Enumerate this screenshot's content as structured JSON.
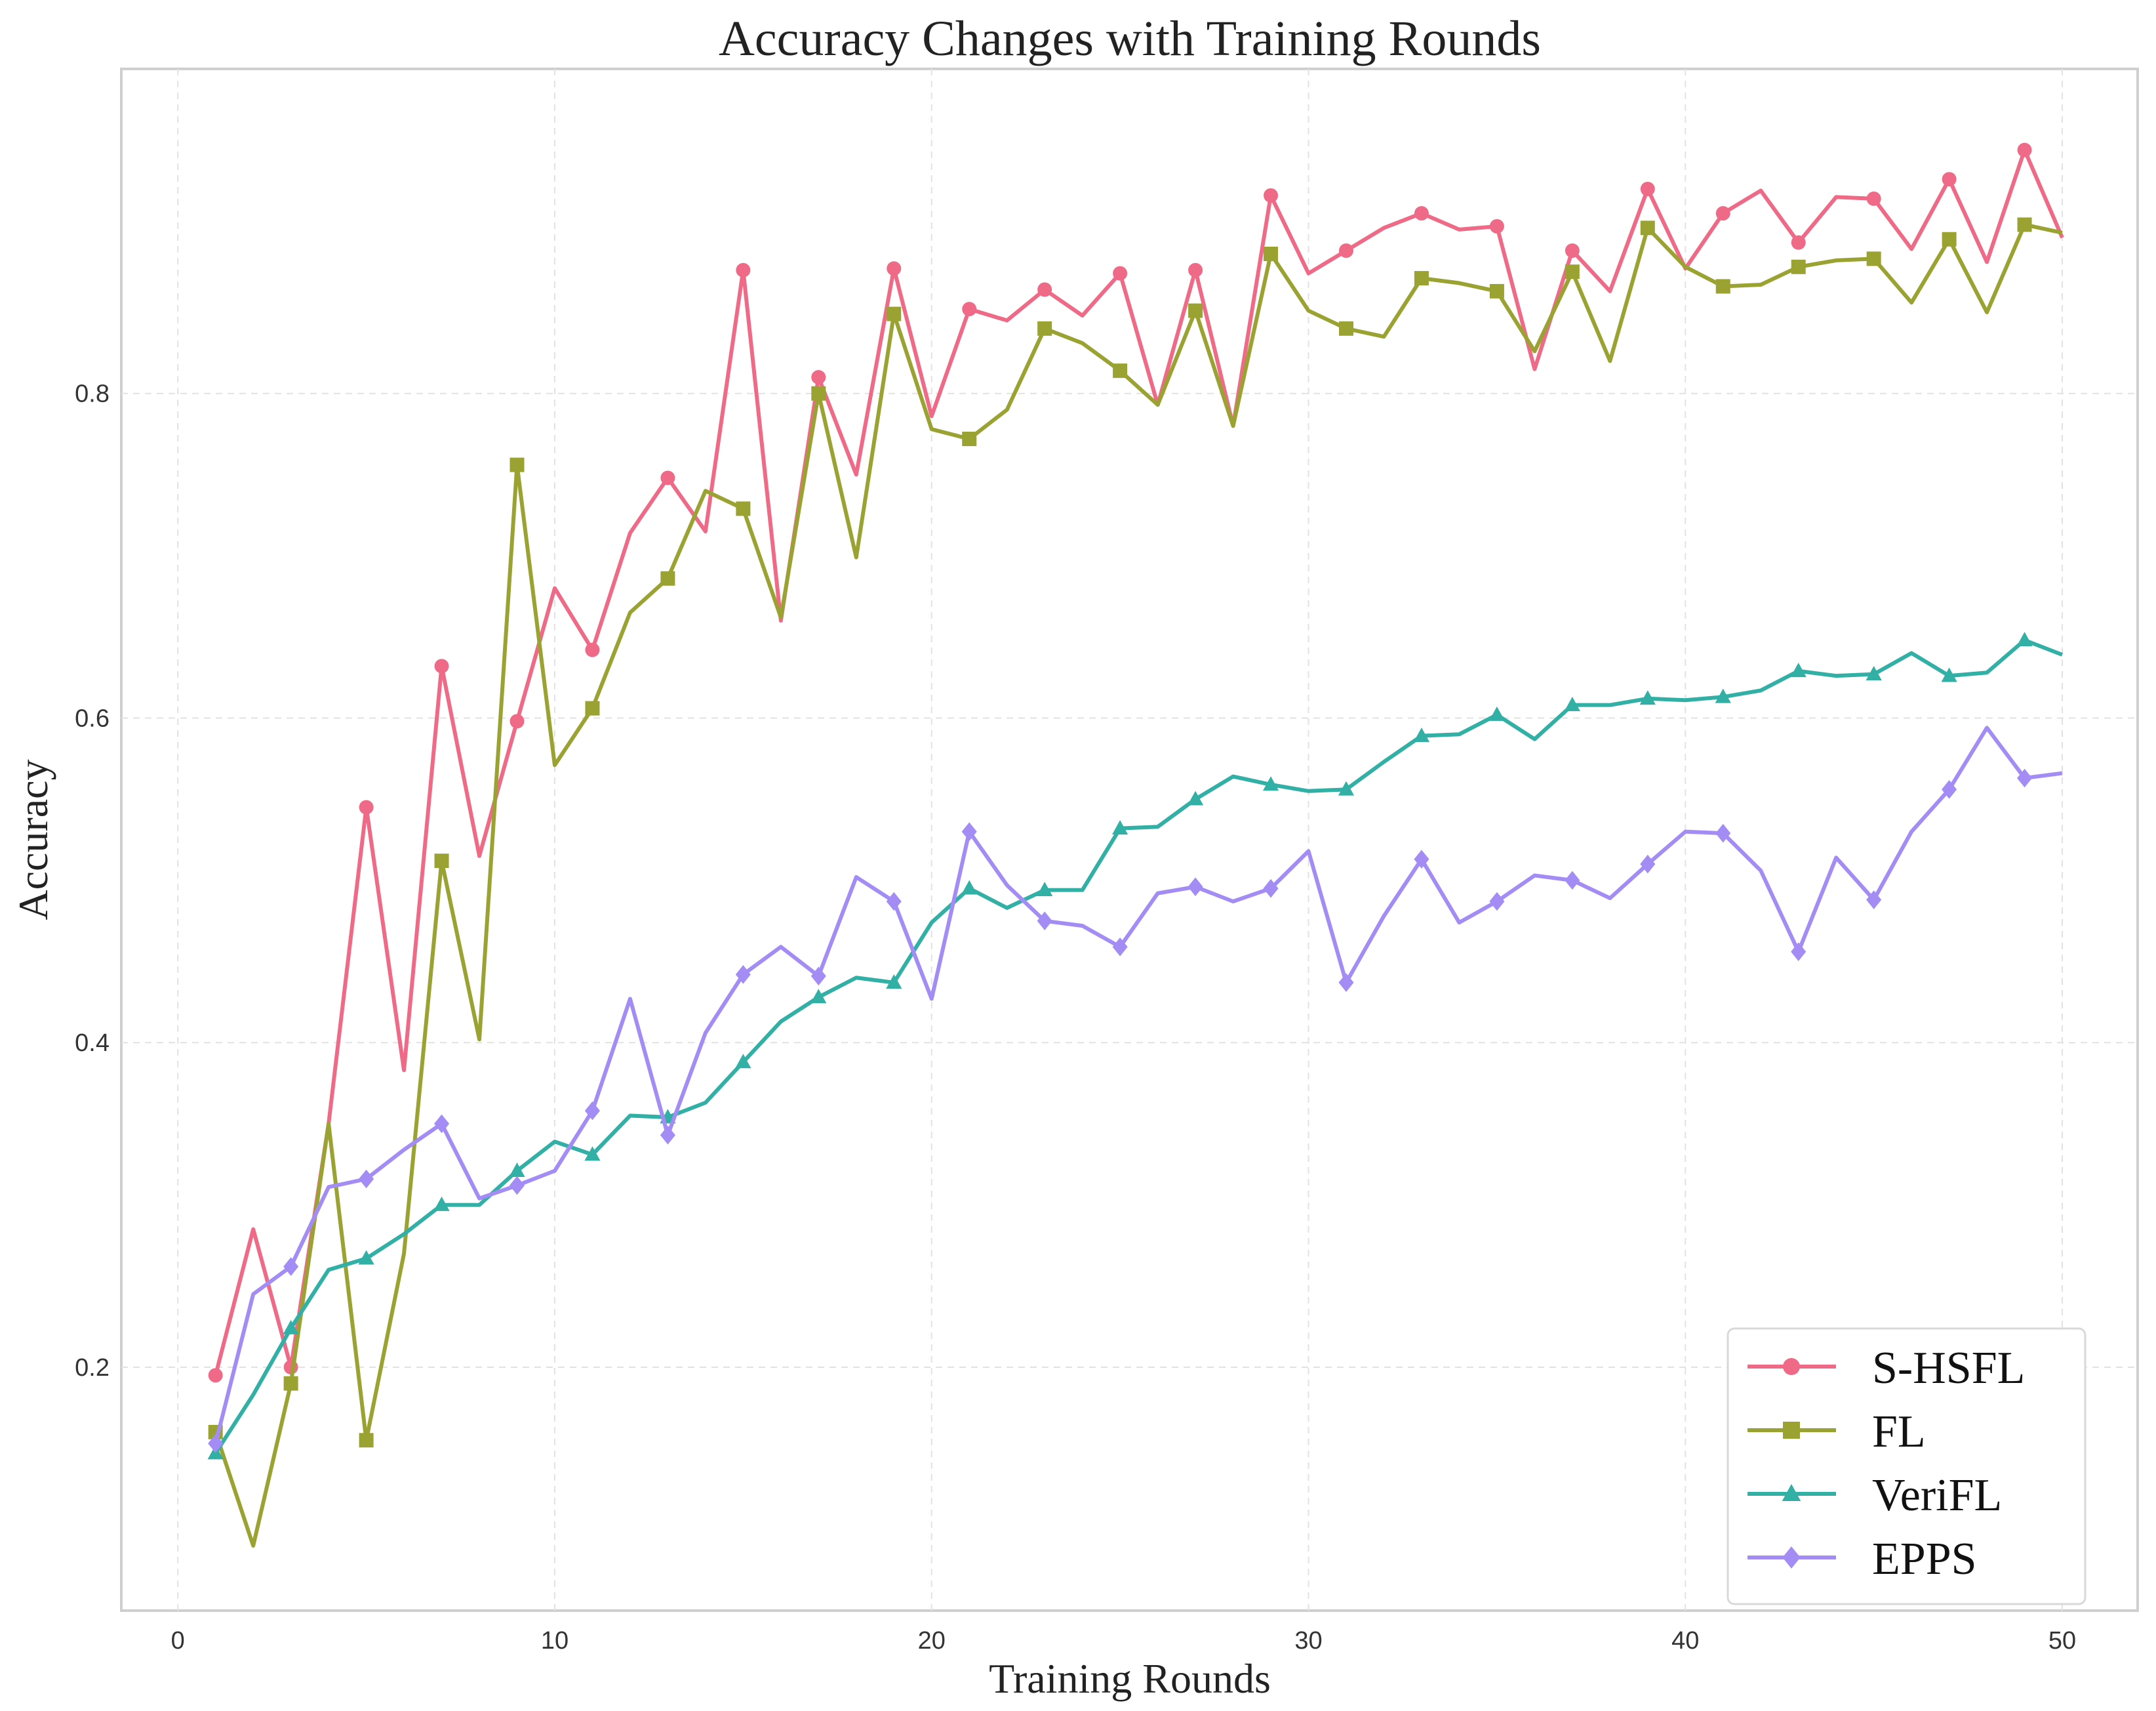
{
  "chart_data": {
    "type": "line",
    "title": "Accuracy Changes with Training Rounds",
    "xlabel": "Training Rounds",
    "ylabel": "Accuracy",
    "xlim": [
      -1.5,
      52
    ],
    "ylim": [
      0.05,
      1.0
    ],
    "xticks": [
      0,
      10,
      20,
      30,
      40,
      50
    ],
    "yticks": [
      0.2,
      0.4,
      0.6,
      0.8
    ],
    "xtick_labels": [
      "0",
      "10",
      "20",
      "30",
      "40",
      "50"
    ],
    "ytick_labels": [
      "0.2",
      "0.4",
      "0.6",
      "0.8"
    ],
    "grid": true,
    "legend_position": "bottom-right",
    "x": [
      1,
      2,
      3,
      4,
      5,
      6,
      7,
      8,
      9,
      10,
      11,
      12,
      13,
      14,
      15,
      16,
      17,
      18,
      19,
      20,
      21,
      22,
      23,
      24,
      25,
      26,
      27,
      28,
      29,
      30,
      31,
      32,
      33,
      34,
      35,
      36,
      37,
      38,
      39,
      40,
      41,
      42,
      43,
      44,
      45,
      46,
      47,
      48,
      49,
      50
    ],
    "series": [
      {
        "name": "S-HSFL",
        "color": "#ee6a87",
        "marker": "circle",
        "values": [
          0.195,
          0.285,
          0.2,
          0.35,
          0.545,
          0.383,
          0.632,
          0.515,
          0.598,
          0.68,
          0.642,
          0.714,
          0.748,
          0.715,
          0.876,
          0.66,
          0.81,
          0.75,
          0.877,
          0.786,
          0.852,
          0.845,
          0.864,
          0.848,
          0.874,
          0.793,
          0.876,
          0.78,
          0.922,
          0.874,
          0.888,
          0.902,
          0.911,
          0.901,
          0.903,
          0.815,
          0.888,
          0.863,
          0.926,
          0.877,
          0.911,
          0.925,
          0.893,
          0.921,
          0.92,
          0.889,
          0.932,
          0.881,
          0.95,
          0.896
        ]
      },
      {
        "name": "FL",
        "color": "#9aa332",
        "marker": "square",
        "values": [
          0.16,
          0.09,
          0.19,
          0.35,
          0.155,
          0.27,
          0.512,
          0.402,
          0.756,
          0.571,
          0.606,
          0.665,
          0.686,
          0.74,
          0.729,
          0.662,
          0.8,
          0.699,
          0.849,
          0.778,
          0.772,
          0.79,
          0.84,
          0.831,
          0.814,
          0.793,
          0.851,
          0.78,
          0.886,
          0.851,
          0.84,
          0.835,
          0.871,
          0.868,
          0.863,
          0.826,
          0.875,
          0.82,
          0.902,
          0.878,
          0.866,
          0.867,
          0.878,
          0.882,
          0.883,
          0.856,
          0.895,
          0.85,
          0.904,
          0.899
        ]
      },
      {
        "name": "VeriFL",
        "color": "#33b0a6",
        "marker": "triangle",
        "values": [
          0.147,
          0.183,
          0.224,
          0.26,
          0.267,
          0.282,
          0.3,
          0.3,
          0.321,
          0.339,
          0.331,
          0.355,
          0.354,
          0.363,
          0.388,
          0.413,
          0.428,
          0.44,
          0.437,
          0.474,
          0.495,
          0.483,
          0.494,
          0.494,
          0.532,
          0.533,
          0.55,
          0.564,
          0.559,
          0.555,
          0.556,
          0.573,
          0.589,
          0.59,
          0.602,
          0.587,
          0.608,
          0.608,
          0.612,
          0.611,
          0.613,
          0.617,
          0.629,
          0.626,
          0.627,
          0.64,
          0.626,
          0.628,
          0.648,
          0.639
        ]
      },
      {
        "name": "EPPS",
        "color": "#a38df4",
        "marker": "diamond",
        "values": [
          0.153,
          0.245,
          0.262,
          0.311,
          0.316,
          0.334,
          0.35,
          0.304,
          0.312,
          0.321,
          0.358,
          0.427,
          0.343,
          0.406,
          0.442,
          0.459,
          0.441,
          0.502,
          0.487,
          0.427,
          0.53,
          0.497,
          0.475,
          0.472,
          0.459,
          0.492,
          0.496,
          0.487,
          0.495,
          0.518,
          0.437,
          0.478,
          0.513,
          0.474,
          0.487,
          0.503,
          0.5,
          0.489,
          0.51,
          0.53,
          0.529,
          0.506,
          0.456,
          0.514,
          0.488,
          0.53,
          0.556,
          0.594,
          0.563,
          0.566
        ]
      }
    ]
  }
}
